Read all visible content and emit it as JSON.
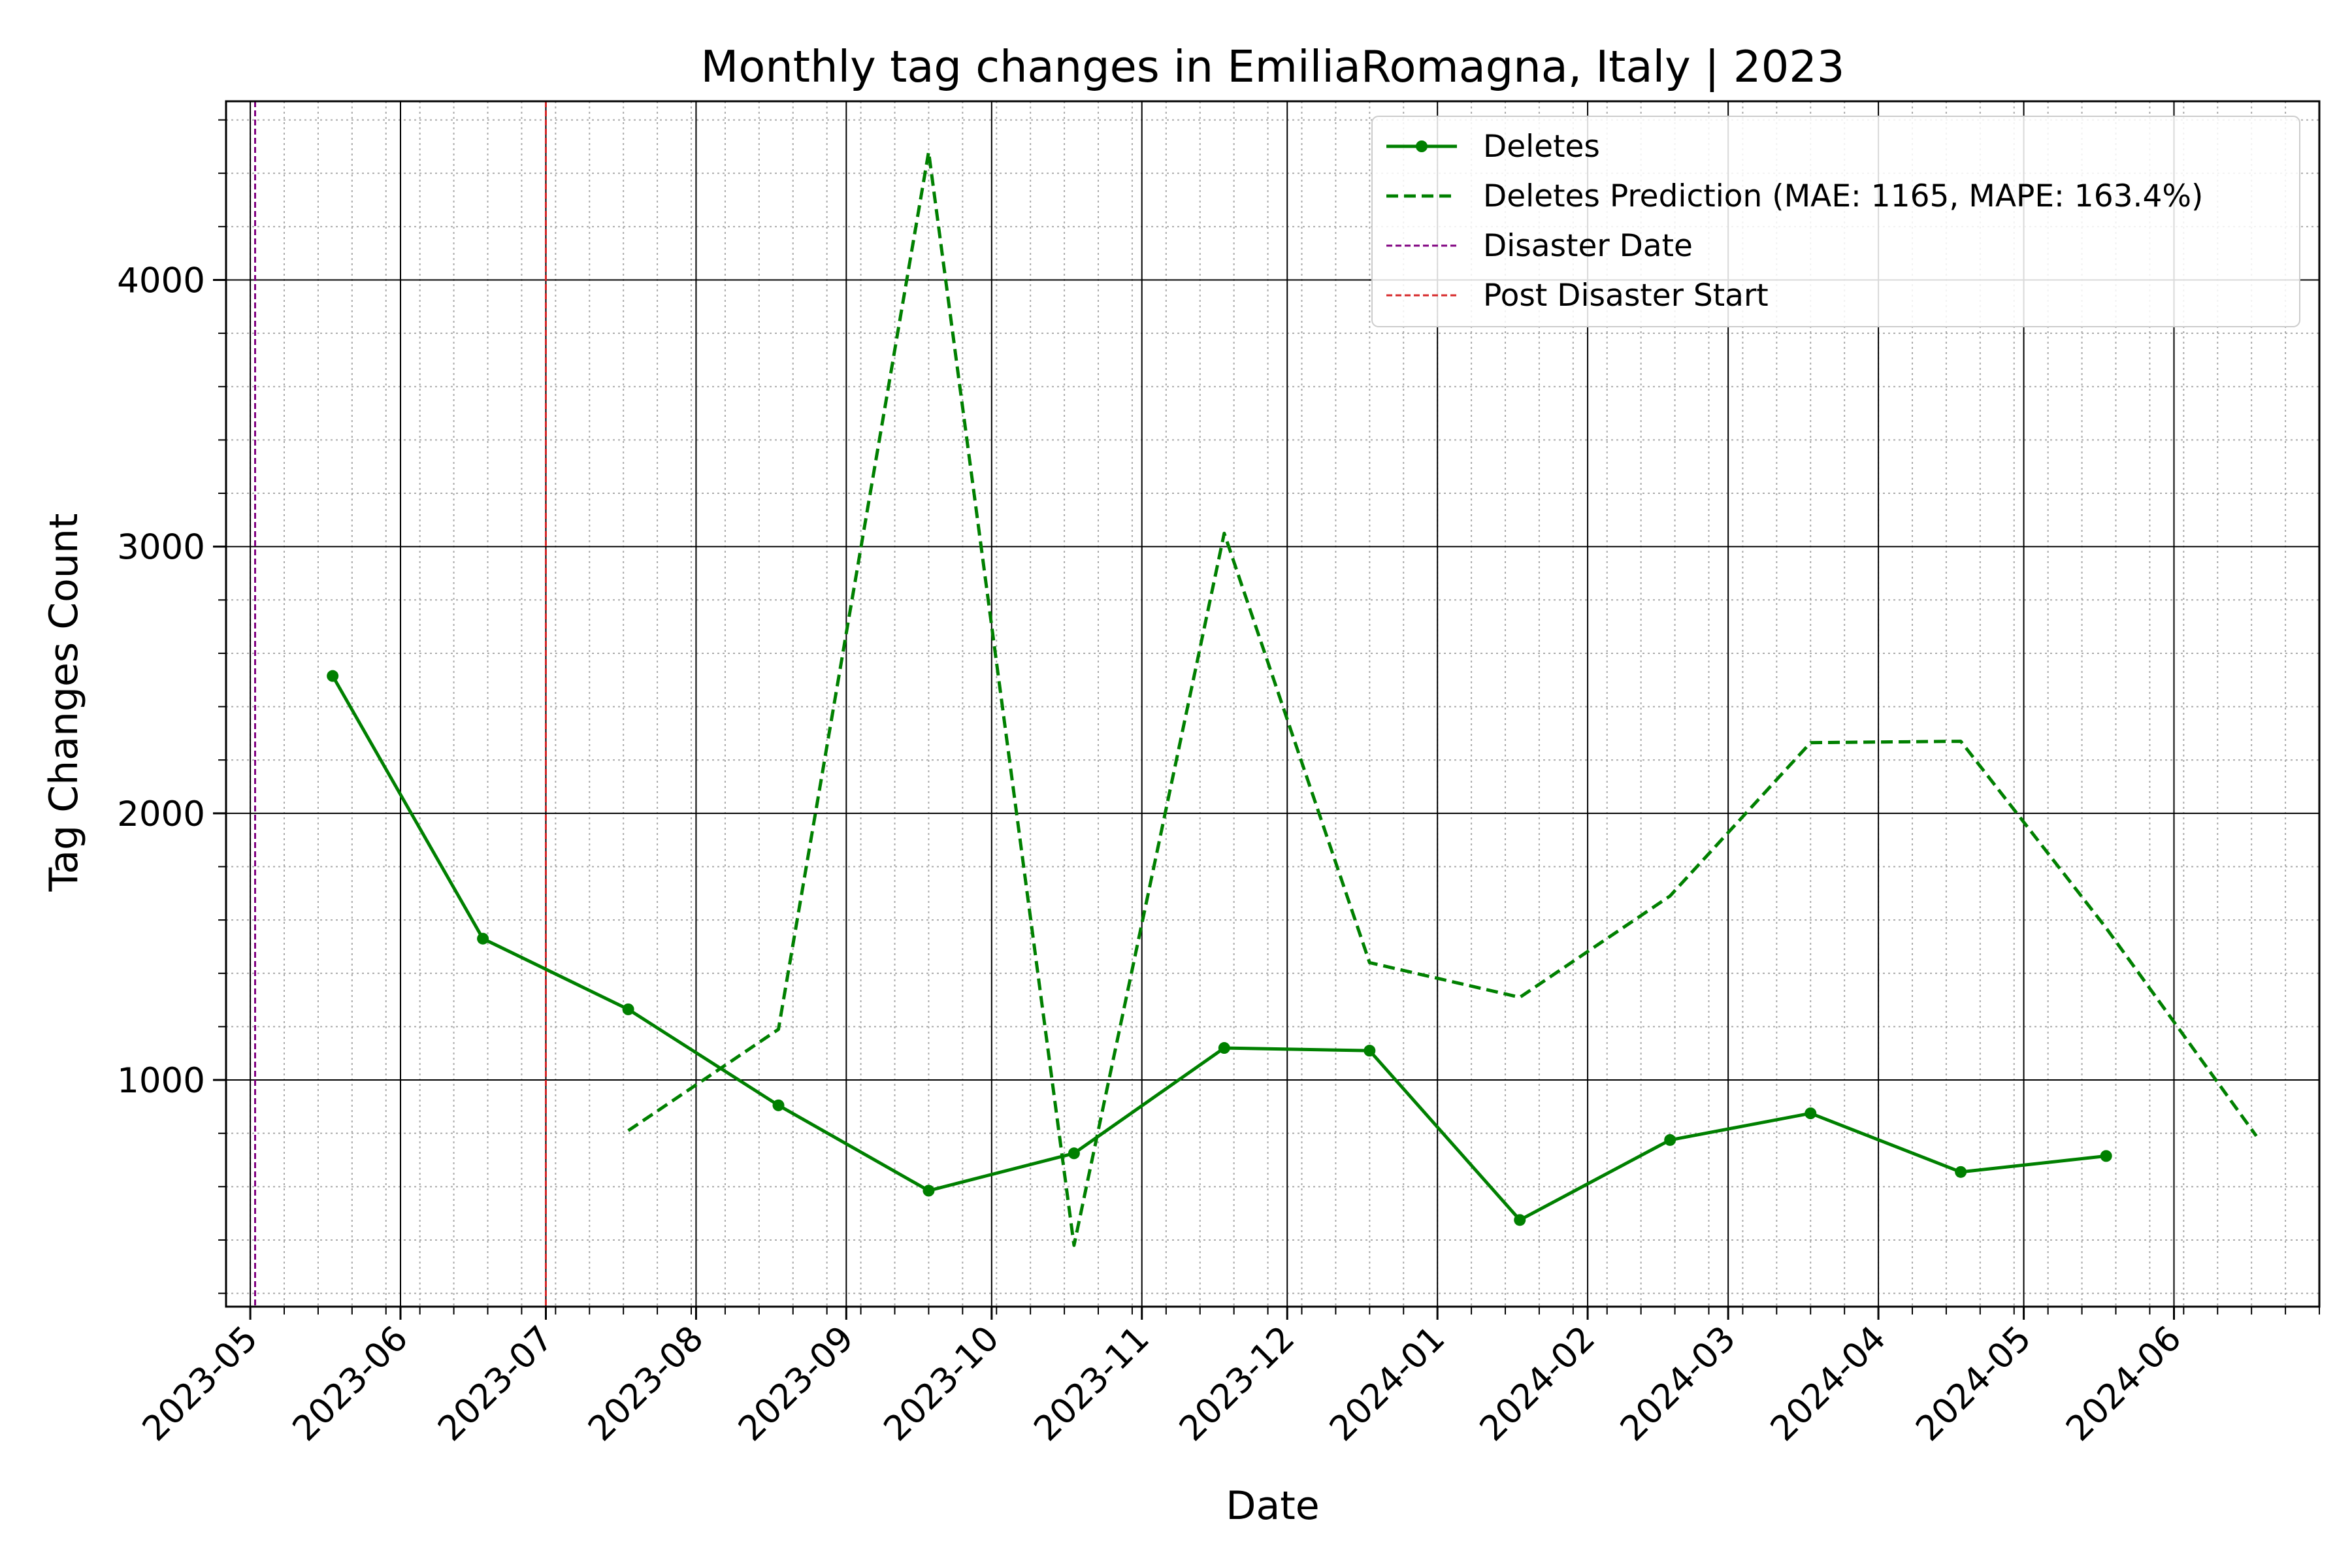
{
  "chart_data": {
    "type": "line",
    "title": "Monthly tag changes in EmiliaRomagna, Italy | 2023",
    "xlabel": "Date",
    "ylabel": "Tag Changes Count",
    "x_range": [
      "2023-04-26",
      "2024-07-01"
    ],
    "ylim": [
      150,
      4670
    ],
    "x_ticks": [
      "2023-05-01",
      "2023-06-01",
      "2023-07-01",
      "2023-08-01",
      "2023-09-01",
      "2023-10-01",
      "2023-11-01",
      "2023-12-01",
      "2024-01-01",
      "2024-02-01",
      "2024-03-01",
      "2024-04-01",
      "2024-05-01",
      "2024-06-01"
    ],
    "x_tick_labels": [
      "2023-05",
      "2023-06",
      "2023-07",
      "2023-08",
      "2023-09",
      "2023-10",
      "2023-11",
      "2023-12",
      "2024-01",
      "2024-02",
      "2024-03",
      "2024-04",
      "2024-05",
      "2024-06"
    ],
    "y_ticks": [
      1000,
      2000,
      3000,
      4000
    ],
    "y_tick_labels": [
      "1000",
      "2000",
      "3000",
      "4000"
    ],
    "grid": true,
    "legend_position": "top-right",
    "series": [
      {
        "name": "Deletes",
        "style": "solid-marker",
        "color": "#008000",
        "x": [
          "2023-05-18",
          "2023-06-18",
          "2023-07-18",
          "2023-08-18",
          "2023-09-18",
          "2023-10-18",
          "2023-11-18",
          "2023-12-18",
          "2024-01-18",
          "2024-02-18",
          "2024-03-18",
          "2024-04-18",
          "2024-05-18"
        ],
        "y": [
          2515,
          1530,
          1265,
          905,
          585,
          725,
          1120,
          1110,
          475,
          775,
          875,
          655,
          715
        ]
      },
      {
        "name": "Deletes Prediction (MAE: 1165, MAPE: 163.4%)",
        "style": "dashed",
        "color": "#008000",
        "x": [
          "2023-07-18",
          "2023-08-18",
          "2023-09-18",
          "2023-10-18",
          "2023-11-18",
          "2023-12-18",
          "2024-01-18",
          "2024-02-18",
          "2024-03-18",
          "2024-04-18",
          "2024-05-18",
          "2024-06-18"
        ],
        "y": [
          810,
          1190,
          4480,
          380,
          3050,
          1440,
          1310,
          1690,
          2265,
          2270,
          1570,
          790
        ]
      }
    ],
    "vlines": [
      {
        "name": "Disaster Date",
        "x": "2023-05-02",
        "color": "#800080",
        "style": "dashed"
      },
      {
        "name": "Post Disaster Start",
        "x": "2023-07-01",
        "color": "#d62728",
        "style": "dashed"
      }
    ]
  }
}
